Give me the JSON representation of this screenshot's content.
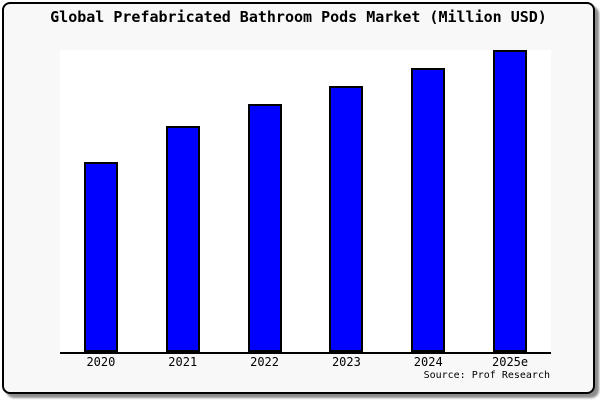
{
  "chart_data": {
    "type": "bar",
    "title": "Global Prefabricated Bathroom Pods Market (Million USD)",
    "categories": [
      "2020",
      "2021",
      "2022",
      "2023",
      "2024",
      "2025e"
    ],
    "values": [
      63,
      75,
      82,
      88,
      94,
      100
    ],
    "values_note": "Y axis has no tick labels or gridlines; values estimated as bar height percent of the tallest (2025e) bar",
    "xlabel": "",
    "ylabel": "",
    "ylim_percent": [
      0,
      100
    ],
    "grid": false,
    "legend": false,
    "source": "Source: Prof Research",
    "colors": {
      "bar_fill": "#0000ff",
      "bar_border": "#000000",
      "plot_background": "#ffffff",
      "frame_background": "#f8f8f8",
      "frame_border": "#000000",
      "text": "#000000"
    }
  }
}
